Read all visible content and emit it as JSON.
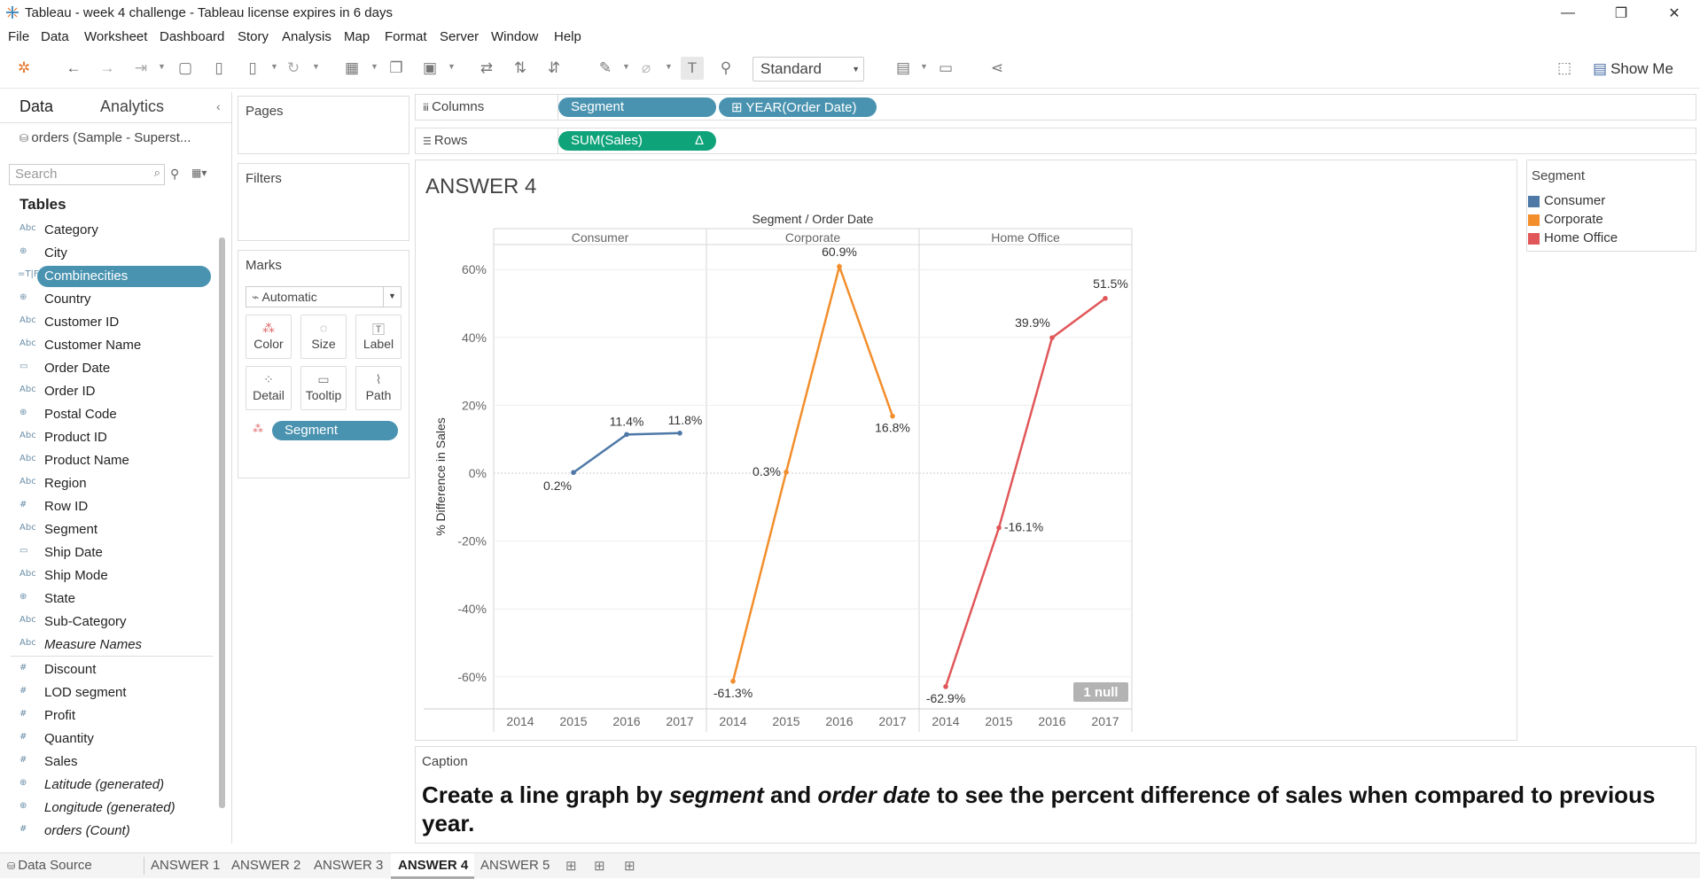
{
  "window": {
    "title": "Tableau - week 4 challenge - Tableau license expires in 6 days",
    "minimize": "—",
    "restore": "❐",
    "close": "✕"
  },
  "menu": [
    "File",
    "Data",
    "Worksheet",
    "Dashboard",
    "Story",
    "Analysis",
    "Map",
    "Format",
    "Server",
    "Window",
    "Help"
  ],
  "toolbar": {
    "fit_select": "Standard",
    "show_me": "Show Me"
  },
  "datapane": {
    "tab_data": "Data",
    "tab_analytics": "Analytics",
    "datasource": "orders (Sample - Superst...",
    "search_placeholder": "Search",
    "tables_heading": "Tables",
    "fields": [
      {
        "icon": "Abc",
        "name": "Category"
      },
      {
        "icon": "⊕",
        "name": "City"
      },
      {
        "icon": "=T|F",
        "name": "Combinecities"
      },
      {
        "icon": "⊕",
        "name": "Country"
      },
      {
        "icon": "Abc",
        "name": "Customer ID"
      },
      {
        "icon": "Abc",
        "name": "Customer Name"
      },
      {
        "icon": "▭",
        "name": "Order Date"
      },
      {
        "icon": "Abc",
        "name": "Order ID"
      },
      {
        "icon": "⊕",
        "name": "Postal Code"
      },
      {
        "icon": "Abc",
        "name": "Product ID"
      },
      {
        "icon": "Abc",
        "name": "Product Name"
      },
      {
        "icon": "Abc",
        "name": "Region"
      },
      {
        "icon": "#",
        "name": "Row ID"
      },
      {
        "icon": "Abc",
        "name": "Segment"
      },
      {
        "icon": "▭",
        "name": "Ship Date"
      },
      {
        "icon": "Abc",
        "name": "Ship Mode"
      },
      {
        "icon": "⊕",
        "name": "State"
      },
      {
        "icon": "Abc",
        "name": "Sub-Category"
      },
      {
        "icon": "Abc",
        "name": "Measure Names"
      }
    ],
    "measures": [
      {
        "icon": "#",
        "name": "Discount"
      },
      {
        "icon": "#",
        "name": "LOD segment"
      },
      {
        "icon": "#",
        "name": "Profit"
      },
      {
        "icon": "#",
        "name": "Quantity"
      },
      {
        "icon": "#",
        "name": "Sales"
      },
      {
        "icon": "⊕",
        "name": "Latitude (generated)"
      },
      {
        "icon": "⊕",
        "name": "Longitude (generated)"
      },
      {
        "icon": "#",
        "name": "orders (Count)"
      }
    ]
  },
  "cards": {
    "pages": "Pages",
    "filters": "Filters",
    "marks": "Marks",
    "mark_type": "Automatic",
    "mark_buttons": [
      "Color",
      "Size",
      "Label",
      "Detail",
      "Tooltip",
      "Path"
    ],
    "color_pill": "Segment"
  },
  "shelves": {
    "columns_label": "Columns",
    "rows_label": "Rows",
    "columns_pills": [
      "Segment",
      "YEAR(Order Date)"
    ],
    "rows_pill": "SUM(Sales)",
    "rows_pill_delta": "Δ"
  },
  "sheet": {
    "title": "ANSWER 4",
    "null_badge": "1 null"
  },
  "legend": {
    "title": "Segment",
    "items": [
      {
        "name": "Consumer",
        "color": "#4e79a7"
      },
      {
        "name": "Corporate",
        "color": "#f28e2b"
      },
      {
        "name": "Home Office",
        "color": "#e15759"
      }
    ]
  },
  "chart_data": {
    "type": "line",
    "title": "",
    "column_header": "Segment / Order Date",
    "panes": [
      "Consumer",
      "Corporate",
      "Home Office"
    ],
    "categories": [
      "2014",
      "2015",
      "2016",
      "2017"
    ],
    "ylabel": "% Difference in Sales",
    "ylim": [
      -70,
      72
    ],
    "yticks": [
      60,
      40,
      20,
      0,
      -20,
      -40,
      -60
    ],
    "ytick_labels": [
      "60%",
      "40%",
      "20%",
      "0%",
      "-20%",
      "-40%",
      "-60%"
    ],
    "series": [
      {
        "name": "Consumer",
        "color": "#4e79a7",
        "values": [
          null,
          0.2,
          11.4,
          11.8
        ],
        "labels": [
          "",
          "0.2%",
          "11.4%",
          "11.8%"
        ]
      },
      {
        "name": "Corporate",
        "color": "#f28e2b",
        "values": [
          -61.3,
          0.3,
          60.9,
          16.8
        ],
        "labels": [
          "-61.3%",
          "0.3%",
          "60.9%",
          "16.8%"
        ]
      },
      {
        "name": "Home Office",
        "color": "#e15759",
        "values": [
          -62.9,
          -16.1,
          39.9,
          51.5
        ],
        "labels": [
          "-62.9%",
          "-16.1%",
          "39.9%",
          "51.5%"
        ]
      }
    ]
  },
  "caption": {
    "heading": "Caption",
    "parts": [
      "Create a line graph by ",
      "segment",
      " and ",
      "order date",
      " to see the percent difference of sales when compared to previous year."
    ]
  },
  "bottom_tabs": {
    "data_source": "Data Source",
    "sheets": [
      "ANSWER 1",
      "ANSWER 2",
      "ANSWER 3",
      "ANSWER 4",
      "ANSWER 5"
    ],
    "active": "ANSWER 4"
  }
}
